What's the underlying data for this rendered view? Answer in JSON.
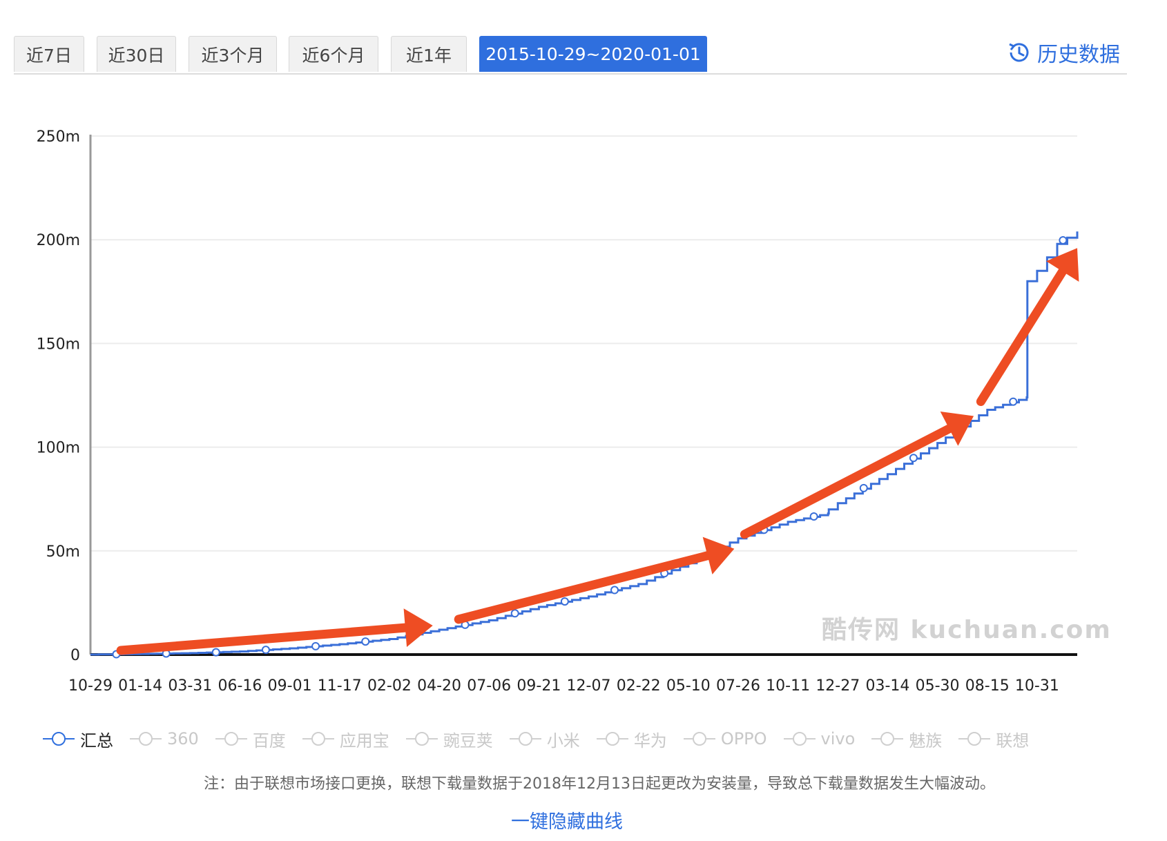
{
  "tabs": [
    {
      "label": "近7日",
      "active": false
    },
    {
      "label": "近30日",
      "active": false
    },
    {
      "label": "近3个月",
      "active": false
    },
    {
      "label": "近6个月",
      "active": false
    },
    {
      "label": "近1年",
      "active": false
    },
    {
      "label": "2015-10-29~2020-01-01",
      "active": true
    }
  ],
  "history_link": {
    "label": "历史数据",
    "icon": "history-clock-icon"
  },
  "watermark": "酷传网 kuchuan.com",
  "colors": {
    "accent": "#2f6fde",
    "line": "#3a6fd8",
    "arrow": "#ee4d23",
    "inactive": "#c8c8c8"
  },
  "chart_data": {
    "type": "line",
    "title": "",
    "xlabel": "",
    "ylabel": "",
    "ylim": [
      0,
      250
    ],
    "y_ticks": [
      "0",
      "50m",
      "100m",
      "150m",
      "200m",
      "250m"
    ],
    "x_ticks": [
      "10-29",
      "01-14",
      "03-31",
      "06-16",
      "09-01",
      "11-17",
      "02-02",
      "04-20",
      "07-06",
      "09-21",
      "12-07",
      "02-22",
      "05-10",
      "07-26",
      "10-11",
      "12-27",
      "03-14",
      "05-30",
      "08-15",
      "10-31"
    ],
    "grid": true,
    "series": [
      {
        "name": "汇总",
        "x": [
          "2015-10-29",
          "2016-01-14",
          "2016-03-31",
          "2016-06-16",
          "2016-09-01",
          "2016-11-17",
          "2017-02-02",
          "2017-04-20",
          "2017-07-06",
          "2017-09-21",
          "2017-12-07",
          "2018-02-22",
          "2018-05-10",
          "2018-07-26",
          "2018-10-11",
          "2018-12-12",
          "2018-12-13",
          "2018-12-27",
          "2019-03-14",
          "2019-05-30",
          "2019-08-15",
          "2019-10-15",
          "2019-10-16",
          "2019-10-31",
          "2019-12-01",
          "2020-01-01"
        ],
        "values": [
          0,
          0.3,
          0.7,
          1.5,
          3,
          5,
          7.5,
          12,
          16.5,
          23,
          28,
          34,
          44,
          56,
          64,
          68,
          70,
          73,
          87,
          102,
          118,
          124,
          180,
          185,
          198,
          204
        ]
      }
    ],
    "trend_arrows": 4
  },
  "legend": [
    {
      "label": "汇总",
      "active": true
    },
    {
      "label": "360",
      "active": false
    },
    {
      "label": "百度",
      "active": false
    },
    {
      "label": "应用宝",
      "active": false
    },
    {
      "label": "豌豆荚",
      "active": false
    },
    {
      "label": "小米",
      "active": false
    },
    {
      "label": "华为",
      "active": false
    },
    {
      "label": "OPPO",
      "active": false
    },
    {
      "label": "vivo",
      "active": false
    },
    {
      "label": "魅族",
      "active": false
    },
    {
      "label": "联想",
      "active": false
    }
  ],
  "note": "注：由于联想市场接口更换，联想下载量数据于2018年12月13日起更改为安装量，导致总下载量数据发生大幅波动。",
  "hide_all_label": "一键隐藏曲线"
}
